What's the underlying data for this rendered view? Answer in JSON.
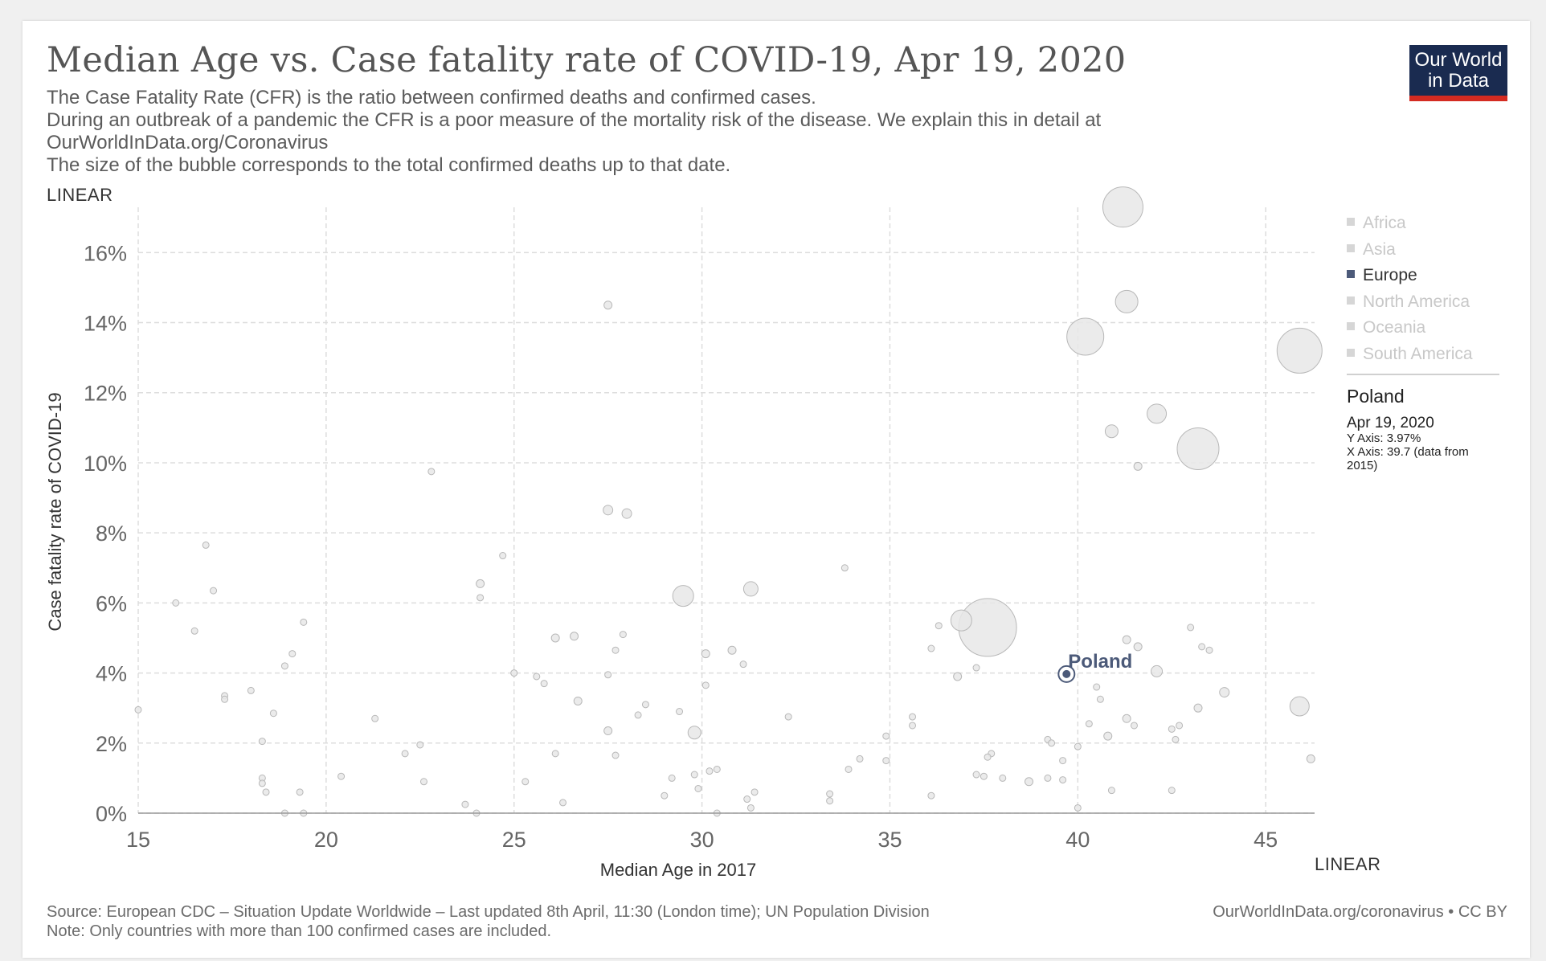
{
  "header": {
    "title": "Median Age vs. Case fatality rate of COVID-19, Apr 19, 2020",
    "subtitle_lines": [
      "The Case Fatality Rate (CFR) is the ratio between confirmed deaths and confirmed cases.",
      "During an outbreak of a pandemic the CFR is a poor measure of the mortality risk of the disease. We explain this in detail at",
      "OurWorldInData.org/Coronavirus",
      "The size of the bubble corresponds to the total confirmed deaths up to that date."
    ],
    "logo_line1": "Our World",
    "logo_line2": "in Data"
  },
  "controls": {
    "y_scale_label": "LINEAR",
    "x_scale_label": "LINEAR"
  },
  "legend": {
    "items": [
      "Africa",
      "Asia",
      "Europe",
      "North America",
      "Oceania",
      "South America"
    ],
    "active": "Europe"
  },
  "tooltip": {
    "name": "Poland",
    "date": "Apr 19, 2020",
    "y_line": "Y Axis: 3.97%",
    "x_line": "X Axis: 39.7 (data from",
    "x_line2": "2015)"
  },
  "footer": {
    "source": "Source: European CDC – Situation Update Worldwide – Last updated 8th April, 11:30 (London time); UN Population Division",
    "note": "Note: Only countries with more than 100 confirmed cases are included.",
    "right": "OurWorldInData.org/coronavirus • CC BY"
  },
  "colors": {
    "highlight": "#4c5a79",
    "bubble_fill": "#e8e8e8",
    "bubble_stroke": "#b8b8b8",
    "grid": "#dddddd",
    "logo_bg": "#1a2b50",
    "logo_accent": "#d42b21"
  },
  "chart_data": {
    "type": "scatter",
    "xlabel": "Median Age in 2017",
    "ylabel": "Case fatality rate of COVID-19",
    "xlim": [
      15,
      46.3
    ],
    "ylim": [
      0,
      17.2
    ],
    "x_ticks": [
      15,
      20,
      25,
      30,
      35,
      40,
      45
    ],
    "y_ticks": [
      0,
      2,
      4,
      6,
      8,
      10,
      12,
      14,
      16
    ],
    "y_tick_labels": [
      "0%",
      "2%",
      "4%",
      "6%",
      "8%",
      "10%",
      "12%",
      "14%",
      "16%"
    ],
    "grid": true,
    "highlight": {
      "label": "Poland",
      "x": 39.7,
      "y": 3.97
    },
    "points": [
      {
        "x": 41.2,
        "y": 17.3,
        "r": 25
      },
      {
        "x": 41.3,
        "y": 14.6,
        "r": 14
      },
      {
        "x": 40.2,
        "y": 13.6,
        "r": 23
      },
      {
        "x": 45.9,
        "y": 13.2,
        "r": 28
      },
      {
        "x": 42.1,
        "y": 11.4,
        "r": 12
      },
      {
        "x": 43.2,
        "y": 10.4,
        "r": 26
      },
      {
        "x": 40.9,
        "y": 10.9,
        "r": 8
      },
      {
        "x": 41.6,
        "y": 9.9,
        "r": 5
      },
      {
        "x": 37.6,
        "y": 5.3,
        "r": 36
      },
      {
        "x": 36.9,
        "y": 5.5,
        "r": 13
      },
      {
        "x": 45.9,
        "y": 3.05,
        "r": 12
      },
      {
        "x": 42.1,
        "y": 4.05,
        "r": 7
      },
      {
        "x": 27.5,
        "y": 14.5,
        "r": 5
      },
      {
        "x": 22.8,
        "y": 9.75,
        "r": 4
      },
      {
        "x": 27.5,
        "y": 8.65,
        "r": 6
      },
      {
        "x": 28.0,
        "y": 8.55,
        "r": 6
      },
      {
        "x": 33.8,
        "y": 7.0,
        "r": 4
      },
      {
        "x": 16.8,
        "y": 7.65,
        "r": 4
      },
      {
        "x": 24.7,
        "y": 7.35,
        "r": 4
      },
      {
        "x": 17.0,
        "y": 6.35,
        "r": 4
      },
      {
        "x": 24.1,
        "y": 6.55,
        "r": 5
      },
      {
        "x": 24.1,
        "y": 6.15,
        "r": 4
      },
      {
        "x": 29.5,
        "y": 6.2,
        "r": 13
      },
      {
        "x": 31.3,
        "y": 6.4,
        "r": 9
      },
      {
        "x": 16.0,
        "y": 6.0,
        "r": 4
      },
      {
        "x": 19.4,
        "y": 5.45,
        "r": 4
      },
      {
        "x": 16.5,
        "y": 5.2,
        "r": 4
      },
      {
        "x": 26.6,
        "y": 5.05,
        "r": 5
      },
      {
        "x": 26.1,
        "y": 5.0,
        "r": 5
      },
      {
        "x": 27.9,
        "y": 5.1,
        "r": 4
      },
      {
        "x": 27.7,
        "y": 4.65,
        "r": 4
      },
      {
        "x": 30.1,
        "y": 4.55,
        "r": 5
      },
      {
        "x": 30.8,
        "y": 4.65,
        "r": 5
      },
      {
        "x": 31.1,
        "y": 4.25,
        "r": 4
      },
      {
        "x": 19.1,
        "y": 4.55,
        "r": 4
      },
      {
        "x": 18.9,
        "y": 4.2,
        "r": 4
      },
      {
        "x": 36.3,
        "y": 5.35,
        "r": 4
      },
      {
        "x": 36.1,
        "y": 4.7,
        "r": 4
      },
      {
        "x": 41.3,
        "y": 4.95,
        "r": 5
      },
      {
        "x": 41.6,
        "y": 4.75,
        "r": 5
      },
      {
        "x": 43.0,
        "y": 5.3,
        "r": 4
      },
      {
        "x": 43.3,
        "y": 4.75,
        "r": 4
      },
      {
        "x": 43.5,
        "y": 4.65,
        "r": 4
      },
      {
        "x": 37.3,
        "y": 4.15,
        "r": 4
      },
      {
        "x": 36.8,
        "y": 3.9,
        "r": 5
      },
      {
        "x": 25.0,
        "y": 4.0,
        "r": 4
      },
      {
        "x": 25.6,
        "y": 3.9,
        "r": 4
      },
      {
        "x": 25.8,
        "y": 3.7,
        "r": 4
      },
      {
        "x": 27.5,
        "y": 3.95,
        "r": 4
      },
      {
        "x": 30.1,
        "y": 3.65,
        "r": 4
      },
      {
        "x": 18.0,
        "y": 3.5,
        "r": 4
      },
      {
        "x": 17.3,
        "y": 3.35,
        "r": 4
      },
      {
        "x": 17.3,
        "y": 3.25,
        "r": 4
      },
      {
        "x": 26.7,
        "y": 3.2,
        "r": 5
      },
      {
        "x": 28.5,
        "y": 3.1,
        "r": 4
      },
      {
        "x": 28.3,
        "y": 2.8,
        "r": 4
      },
      {
        "x": 29.4,
        "y": 2.9,
        "r": 4
      },
      {
        "x": 40.5,
        "y": 3.6,
        "r": 4
      },
      {
        "x": 40.6,
        "y": 3.25,
        "r": 4
      },
      {
        "x": 43.2,
        "y": 3.0,
        "r": 5
      },
      {
        "x": 43.9,
        "y": 3.45,
        "r": 6
      },
      {
        "x": 15.0,
        "y": 2.95,
        "r": 4
      },
      {
        "x": 18.6,
        "y": 2.85,
        "r": 4
      },
      {
        "x": 21.3,
        "y": 2.7,
        "r": 4
      },
      {
        "x": 32.3,
        "y": 2.75,
        "r": 4
      },
      {
        "x": 35.6,
        "y": 2.75,
        "r": 4
      },
      {
        "x": 35.6,
        "y": 2.5,
        "r": 4
      },
      {
        "x": 41.3,
        "y": 2.7,
        "r": 5
      },
      {
        "x": 40.3,
        "y": 2.55,
        "r": 4
      },
      {
        "x": 41.5,
        "y": 2.5,
        "r": 4
      },
      {
        "x": 42.5,
        "y": 2.4,
        "r": 4
      },
      {
        "x": 42.7,
        "y": 2.5,
        "r": 4
      },
      {
        "x": 27.5,
        "y": 2.35,
        "r": 5
      },
      {
        "x": 29.8,
        "y": 2.3,
        "r": 8
      },
      {
        "x": 40.8,
        "y": 2.2,
        "r": 5
      },
      {
        "x": 42.6,
        "y": 2.1,
        "r": 4
      },
      {
        "x": 34.9,
        "y": 2.2,
        "r": 4
      },
      {
        "x": 39.2,
        "y": 2.1,
        "r": 4
      },
      {
        "x": 39.3,
        "y": 2.0,
        "r": 4
      },
      {
        "x": 40.0,
        "y": 1.9,
        "r": 4
      },
      {
        "x": 18.3,
        "y": 2.05,
        "r": 4
      },
      {
        "x": 22.5,
        "y": 1.95,
        "r": 4
      },
      {
        "x": 22.1,
        "y": 1.7,
        "r": 4
      },
      {
        "x": 26.1,
        "y": 1.7,
        "r": 4
      },
      {
        "x": 27.7,
        "y": 1.65,
        "r": 4
      },
      {
        "x": 37.7,
        "y": 1.7,
        "r": 4
      },
      {
        "x": 37.6,
        "y": 1.6,
        "r": 4
      },
      {
        "x": 34.2,
        "y": 1.55,
        "r": 4
      },
      {
        "x": 34.9,
        "y": 1.5,
        "r": 4
      },
      {
        "x": 39.6,
        "y": 1.5,
        "r": 4
      },
      {
        "x": 46.2,
        "y": 1.55,
        "r": 5
      },
      {
        "x": 33.9,
        "y": 1.25,
        "r": 4
      },
      {
        "x": 30.4,
        "y": 1.25,
        "r": 4
      },
      {
        "x": 30.2,
        "y": 1.2,
        "r": 4
      },
      {
        "x": 29.8,
        "y": 1.1,
        "r": 4
      },
      {
        "x": 29.2,
        "y": 1.0,
        "r": 4
      },
      {
        "x": 37.3,
        "y": 1.1,
        "r": 4
      },
      {
        "x": 37.5,
        "y": 1.05,
        "r": 4
      },
      {
        "x": 38.0,
        "y": 1.0,
        "r": 4
      },
      {
        "x": 38.7,
        "y": 0.9,
        "r": 5
      },
      {
        "x": 39.2,
        "y": 1.0,
        "r": 4
      },
      {
        "x": 39.6,
        "y": 0.95,
        "r": 4
      },
      {
        "x": 20.4,
        "y": 1.05,
        "r": 4
      },
      {
        "x": 22.6,
        "y": 0.9,
        "r": 4
      },
      {
        "x": 25.3,
        "y": 0.9,
        "r": 4
      },
      {
        "x": 18.3,
        "y": 1.0,
        "r": 4
      },
      {
        "x": 18.3,
        "y": 0.85,
        "r": 4
      },
      {
        "x": 18.4,
        "y": 0.6,
        "r": 4
      },
      {
        "x": 19.3,
        "y": 0.6,
        "r": 4
      },
      {
        "x": 29.9,
        "y": 0.7,
        "r": 4
      },
      {
        "x": 31.4,
        "y": 0.6,
        "r": 4
      },
      {
        "x": 33.4,
        "y": 0.55,
        "r": 4
      },
      {
        "x": 33.4,
        "y": 0.35,
        "r": 4
      },
      {
        "x": 36.1,
        "y": 0.5,
        "r": 4
      },
      {
        "x": 31.2,
        "y": 0.4,
        "r": 4
      },
      {
        "x": 31.3,
        "y": 0.15,
        "r": 4
      },
      {
        "x": 42.5,
        "y": 0.65,
        "r": 4
      },
      {
        "x": 40.9,
        "y": 0.65,
        "r": 4
      },
      {
        "x": 40.0,
        "y": 0.15,
        "r": 4
      },
      {
        "x": 29.0,
        "y": 0.5,
        "r": 4
      },
      {
        "x": 26.3,
        "y": 0.3,
        "r": 4
      },
      {
        "x": 23.7,
        "y": 0.25,
        "r": 4
      },
      {
        "x": 24.0,
        "y": 0.0,
        "r": 4
      },
      {
        "x": 18.9,
        "y": 0.0,
        "r": 4
      },
      {
        "x": 19.4,
        "y": 0.0,
        "r": 4
      },
      {
        "x": 30.4,
        "y": 0.0,
        "r": 4
      }
    ]
  }
}
